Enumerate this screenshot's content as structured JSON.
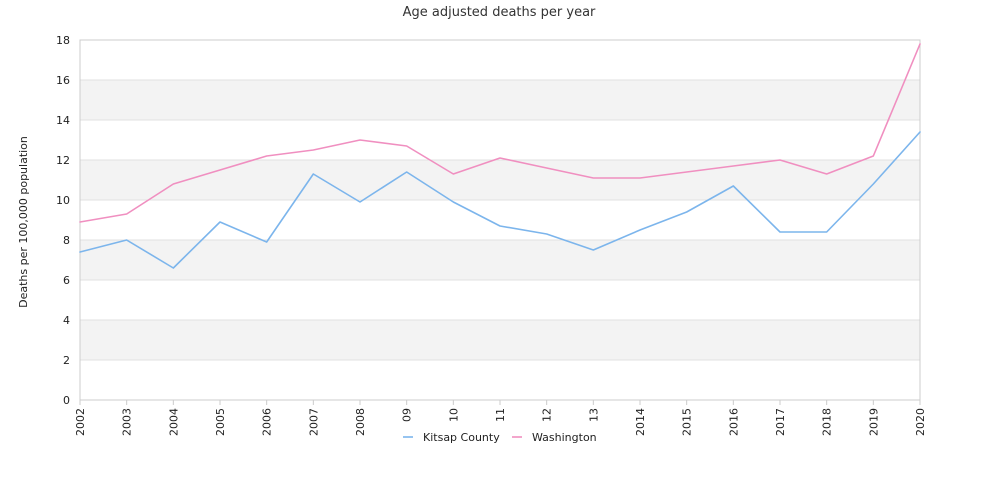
{
  "chart_data": {
    "type": "line",
    "title": "Age adjusted deaths per year",
    "xlabel": "",
    "ylabel": "Deaths per 100,000 population",
    "categories": [
      "2002",
      "2003",
      "2004",
      "2005",
      "2006",
      "2007",
      "2008",
      "09",
      "10",
      "11",
      "12",
      "13",
      "2014",
      "2015",
      "2016",
      "2017",
      "2018",
      "2019",
      "2020"
    ],
    "ylim": [
      0,
      18
    ],
    "yticks": [
      0,
      2,
      4,
      6,
      8,
      10,
      12,
      14,
      16,
      18
    ],
    "grid": true,
    "legend_position": "bottom",
    "series": [
      {
        "name": "Kitsap County",
        "color": "#7cb5ec",
        "values": [
          7.4,
          8.0,
          6.6,
          8.9,
          7.9,
          11.3,
          9.9,
          11.4,
          9.9,
          8.7,
          8.3,
          7.5,
          8.5,
          9.4,
          10.7,
          8.4,
          8.4,
          10.8,
          13.4
        ]
      },
      {
        "name": "Washington",
        "color": "#f08fc0",
        "values": [
          8.9,
          9.3,
          10.8,
          11.5,
          12.2,
          12.5,
          13.0,
          12.7,
          11.3,
          12.1,
          11.6,
          11.1,
          11.1,
          11.4,
          11.7,
          12.0,
          11.3,
          12.2,
          17.8
        ]
      }
    ]
  }
}
